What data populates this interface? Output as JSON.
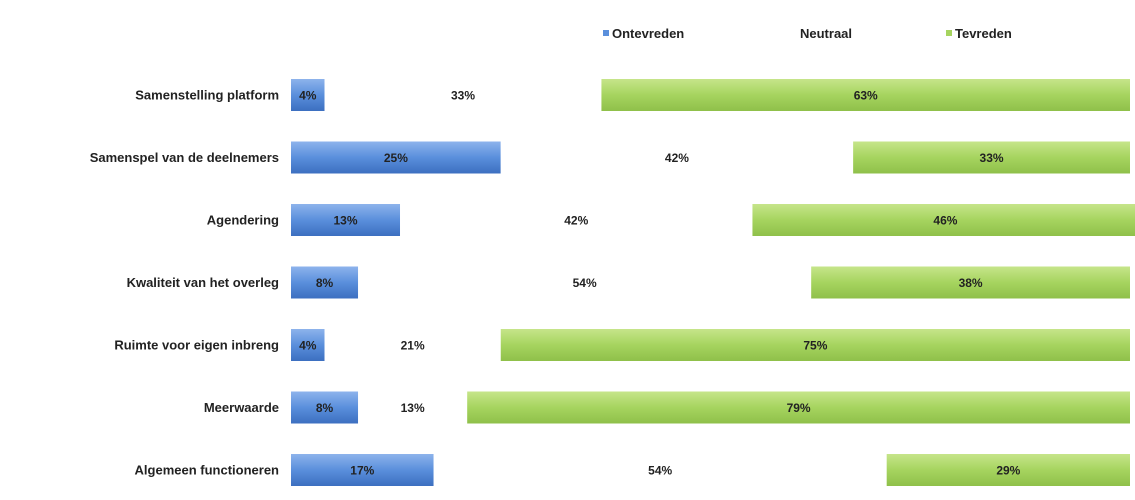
{
  "chart_data": {
    "type": "bar",
    "orientation": "horizontal",
    "stacked": true,
    "percent": true,
    "categories": [
      "Samenstelling platform",
      "Samenspel van de deelnemers",
      "Agendering",
      "Kwaliteit van het overleg",
      "Ruimte voor eigen inbreng",
      "Meerwaarde",
      "Algemeen functioneren"
    ],
    "series": [
      {
        "name": "Ontevreden",
        "color": "#4f81d0",
        "values": [
          4,
          25,
          13,
          8,
          4,
          8,
          17
        ]
      },
      {
        "name": "Neutraal",
        "color": "#ffffff",
        "values": [
          33,
          42,
          42,
          54,
          21,
          13,
          54
        ]
      },
      {
        "name": "Tevreden",
        "color": "#9bcc50",
        "values": [
          63,
          33,
          46,
          38,
          75,
          79,
          29
        ]
      }
    ],
    "value_labels": [
      [
        "4%",
        "33%",
        "63%"
      ],
      [
        "25%",
        "42%",
        "33%"
      ],
      [
        "13%",
        "42%",
        "46%"
      ],
      [
        "8%",
        "54%",
        "38%"
      ],
      [
        "4%",
        "21%",
        "75%"
      ],
      [
        "8%",
        "13%",
        "79%"
      ],
      [
        "17%",
        "54%",
        "29%"
      ]
    ],
    "xlim": [
      0,
      100
    ],
    "grid": false,
    "legend_position": "top-right",
    "title": "",
    "xlabel": "",
    "ylabel": ""
  }
}
